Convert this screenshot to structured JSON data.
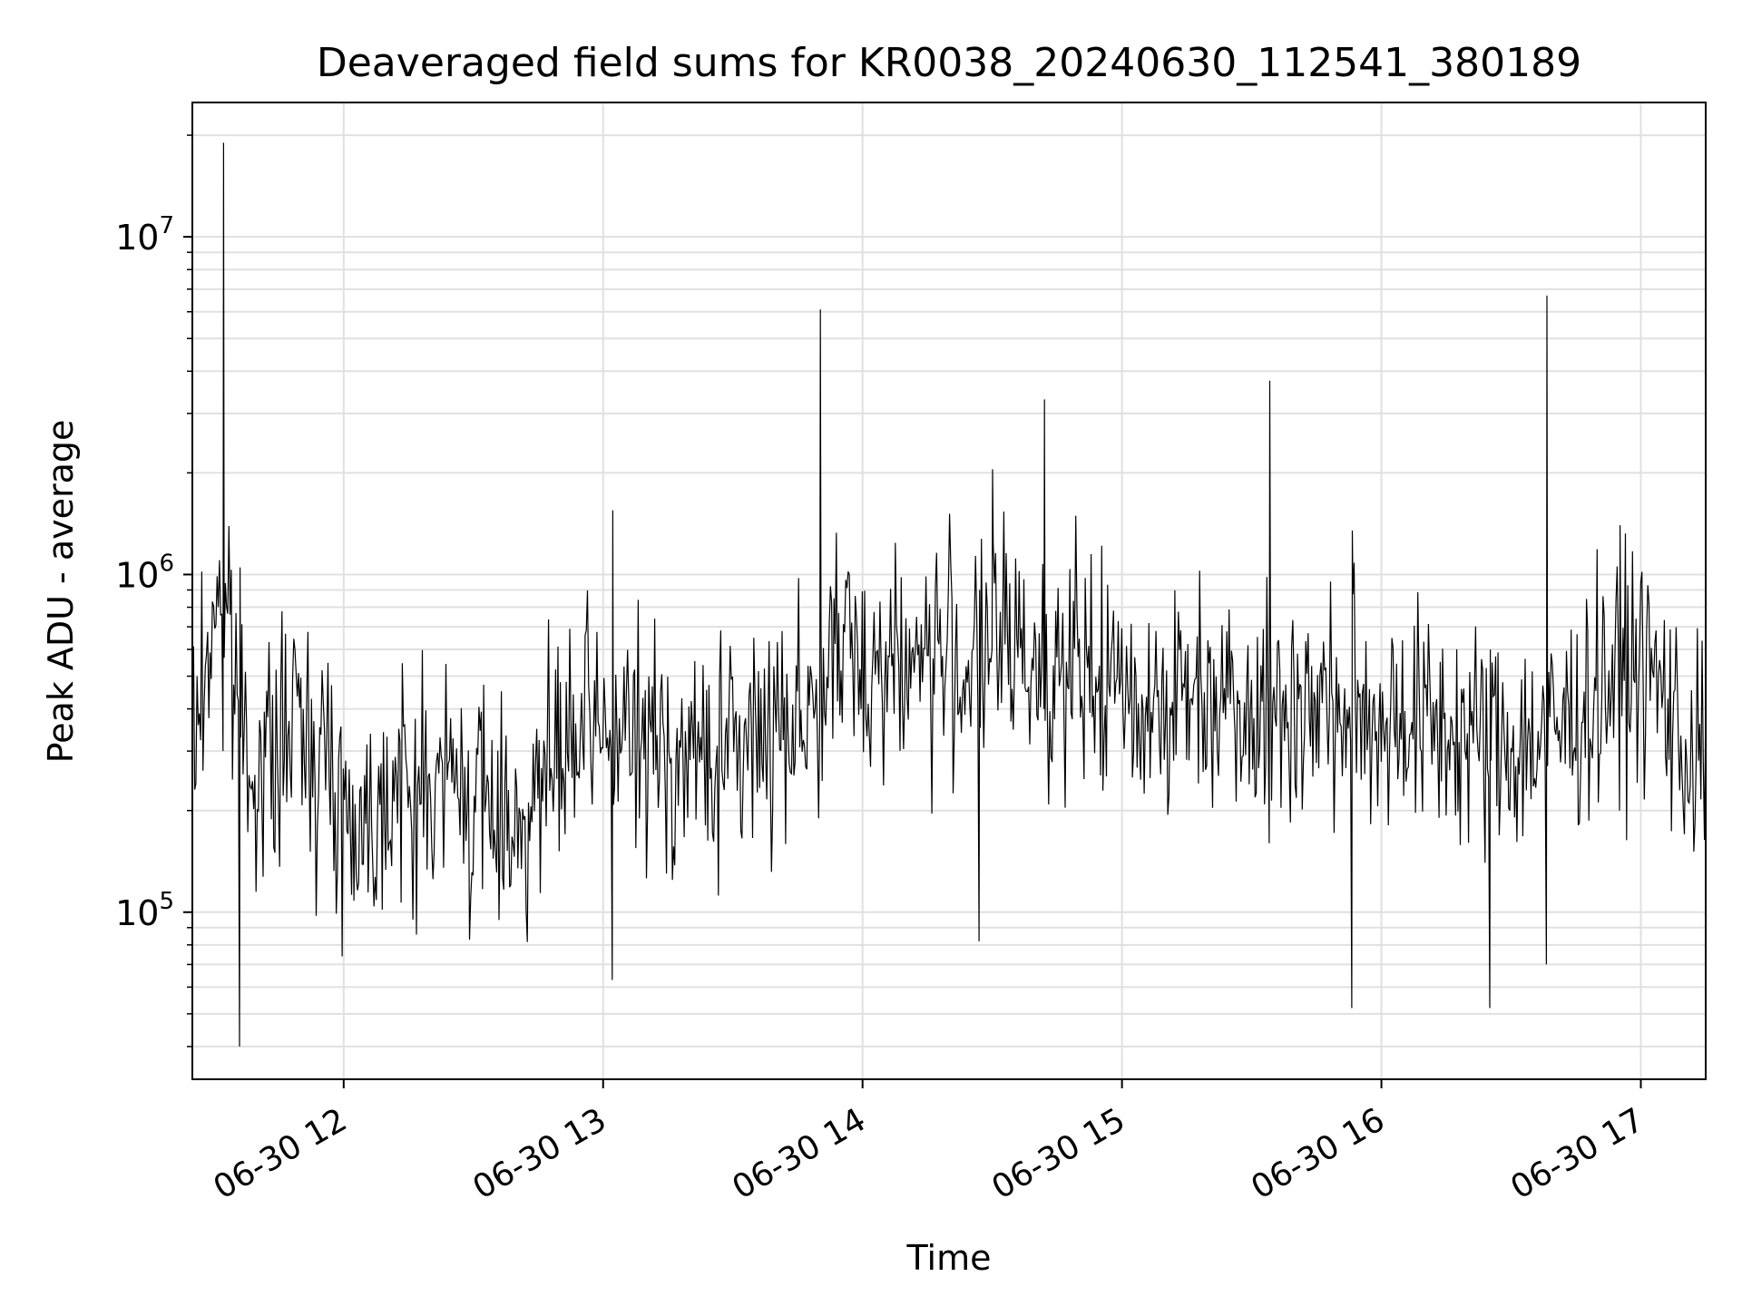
{
  "chart_data": {
    "type": "line",
    "title": "Deaveraged field sums for KR0038_20240630_112541_380189",
    "xlabel": "Time",
    "ylabel": "Peak ADU - average",
    "x_type": "datetime",
    "x_range": [
      "2024-06-30 11:25",
      "2024-06-30 17:15"
    ],
    "xticks": [
      {
        "t": "2024-06-30 12:00",
        "label": "06-30 12"
      },
      {
        "t": "2024-06-30 13:00",
        "label": "06-30 13"
      },
      {
        "t": "2024-06-30 14:00",
        "label": "06-30 14"
      },
      {
        "t": "2024-06-30 15:00",
        "label": "06-30 15"
      },
      {
        "t": "2024-06-30 16:00",
        "label": "06-30 16"
      },
      {
        "t": "2024-06-30 17:00",
        "label": "06-30 17"
      }
    ],
    "y_scale": "log",
    "ylim": [
      32000,
      25000000
    ],
    "yticks": [
      {
        "v": 100000,
        "base": "10",
        "exp": "5"
      },
      {
        "v": 1000000,
        "base": "10",
        "exp": "6"
      },
      {
        "v": 10000000,
        "base": "10",
        "exp": "7"
      }
    ],
    "grid": true,
    "line_color": "#000000",
    "series": [
      {
        "x": [
          "2024-06-30 11:25",
          "2024-06-30 11:28",
          "2024-06-30 11:31",
          "2024-06-30 11:33",
          "2024-06-30 11:35",
          "2024-06-30 11:38",
          "2024-06-30 11:42",
          "2024-06-30 11:46",
          "2024-06-30 11:50",
          "2024-06-30 11:55",
          "2024-06-30 12:00",
          "2024-06-30 12:05",
          "2024-06-30 12:10",
          "2024-06-30 12:15",
          "2024-06-30 12:20",
          "2024-06-30 12:25",
          "2024-06-30 12:30",
          "2024-06-30 12:35",
          "2024-06-30 12:40",
          "2024-06-30 12:45",
          "2024-06-30 12:50",
          "2024-06-30 12:55",
          "2024-06-30 13:00",
          "2024-06-30 13:05",
          "2024-06-30 13:10",
          "2024-06-30 13:15",
          "2024-06-30 13:20",
          "2024-06-30 13:25",
          "2024-06-30 13:30",
          "2024-06-30 13:35",
          "2024-06-30 13:40",
          "2024-06-30 13:45",
          "2024-06-30 13:50",
          "2024-06-30 13:55",
          "2024-06-30 14:00",
          "2024-06-30 14:05",
          "2024-06-30 14:10",
          "2024-06-30 14:15",
          "2024-06-30 14:20",
          "2024-06-30 14:25",
          "2024-06-30 14:30",
          "2024-06-30 14:35",
          "2024-06-30 14:40",
          "2024-06-30 14:45",
          "2024-06-30 14:50",
          "2024-06-30 14:55",
          "2024-06-30 15:00",
          "2024-06-30 15:05",
          "2024-06-30 15:10",
          "2024-06-30 15:15",
          "2024-06-30 15:20",
          "2024-06-30 15:25",
          "2024-06-30 15:30",
          "2024-06-30 15:35",
          "2024-06-30 15:40",
          "2024-06-30 15:45",
          "2024-06-30 15:50",
          "2024-06-30 15:55",
          "2024-06-30 16:00",
          "2024-06-30 16:05",
          "2024-06-30 16:10",
          "2024-06-30 16:15",
          "2024-06-30 16:20",
          "2024-06-30 16:25",
          "2024-06-30 16:30",
          "2024-06-30 16:35",
          "2024-06-30 16:40",
          "2024-06-30 16:45",
          "2024-06-30 16:50",
          "2024-06-30 16:55",
          "2024-06-30 17:00",
          "2024-06-30 17:05",
          "2024-06-30 17:10",
          "2024-06-30 17:15"
        ],
        "y": [
          300000,
          500000,
          1000000,
          700000,
          480000,
          300000,
          260000,
          320000,
          380000,
          300000,
          200000,
          180000,
          240000,
          220000,
          230000,
          250000,
          210000,
          200000,
          190000,
          220000,
          280000,
          320000,
          350000,
          330000,
          310000,
          300000,
          280000,
          290000,
          300000,
          320000,
          380000,
          400000,
          420000,
          600000,
          550000,
          550000,
          560000,
          580000,
          570000,
          540000,
          600000,
          620000,
          560000,
          520000,
          500000,
          480000,
          450000,
          430000,
          420000,
          440000,
          460000,
          460000,
          430000,
          400000,
          410000,
          420000,
          390000,
          380000,
          380000,
          390000,
          360000,
          350000,
          330000,
          320000,
          310000,
          320000,
          340000,
          380000,
          450000,
          520000,
          560000,
          450000,
          300000,
          280000
        ]
      }
    ],
    "spikes": [
      {
        "t": "2024-06-30 11:32",
        "peak": 19000000,
        "dip": 300000
      },
      {
        "t": "2024-06-30 11:36",
        "peak": 1050000,
        "dip": 40000
      },
      {
        "t": "2024-06-30 13:02",
        "peak": 1550000,
        "dip": 63000
      },
      {
        "t": "2024-06-30 13:50",
        "peak": 6100000,
        "dip": 400000
      },
      {
        "t": "2024-06-30 14:27",
        "peak": 900000,
        "dip": 82000
      },
      {
        "t": "2024-06-30 14:30",
        "peak": 2050000,
        "dip": 600000
      },
      {
        "t": "2024-06-30 14:42",
        "peak": 3300000,
        "dip": 400000
      },
      {
        "t": "2024-06-30 15:34",
        "peak": 3750000,
        "dip": 160000
      },
      {
        "t": "2024-06-30 15:53",
        "peak": 1350000,
        "dip": 52000
      },
      {
        "t": "2024-06-30 16:25",
        "peak": 600000,
        "dip": 52000
      },
      {
        "t": "2024-06-30 16:38",
        "peak": 6700000,
        "dip": 70000
      },
      {
        "t": "2024-06-30 16:55",
        "peak": 1400000,
        "dip": 200000
      }
    ]
  }
}
